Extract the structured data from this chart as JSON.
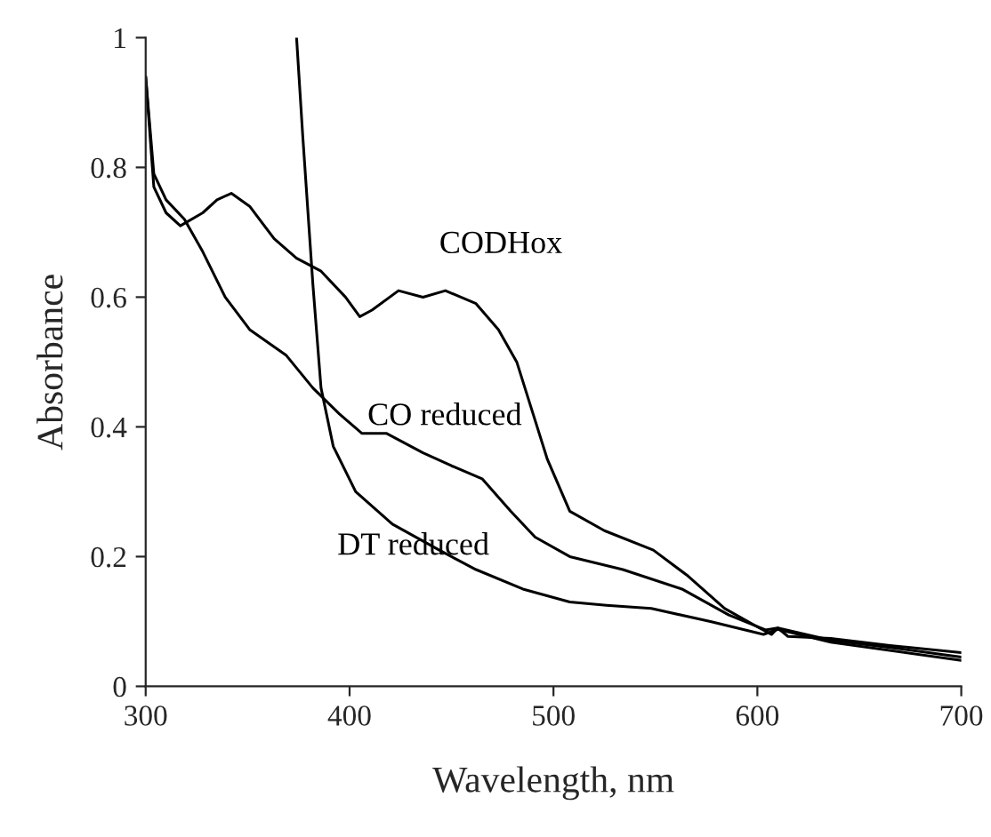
{
  "chart_data": {
    "type": "line",
    "xlabel": "Wavelength, nm",
    "ylabel": "Absorbance",
    "xlim": [
      300,
      700
    ],
    "ylim": [
      0,
      1
    ],
    "xticks": [
      300,
      400,
      500,
      600,
      700
    ],
    "yticks": [
      0,
      0.2,
      0.4,
      0.6,
      0.8,
      1
    ],
    "grid": false,
    "legend": false,
    "marker": "none",
    "line_style": "solid",
    "series": [
      {
        "name": "CODHox",
        "color": "#000000",
        "x": [
          300,
          304,
          310,
          317,
          328,
          335,
          342,
          351,
          363,
          374,
          386,
          398,
          405,
          411,
          424,
          436,
          447,
          462,
          473,
          482,
          491,
          497,
          508,
          525,
          549,
          566,
          584,
          601,
          607,
          610,
          615,
          636,
          665,
          700
        ],
        "values": [
          0.94,
          0.77,
          0.73,
          0.71,
          0.73,
          0.75,
          0.76,
          0.74,
          0.69,
          0.66,
          0.64,
          0.6,
          0.57,
          0.58,
          0.61,
          0.6,
          0.61,
          0.59,
          0.55,
          0.5,
          0.41,
          0.35,
          0.27,
          0.24,
          0.21,
          0.17,
          0.12,
          0.09,
          0.08,
          0.09,
          0.077,
          0.074,
          0.063,
          0.052
        ]
      },
      {
        "name": "CO reduced",
        "color": "#000000",
        "x": [
          300,
          304,
          310,
          319,
          328,
          339,
          351,
          369,
          382,
          395,
          406,
          418,
          436,
          450,
          465,
          479,
          491,
          508,
          534,
          563,
          586,
          604,
          610,
          636,
          665,
          700
        ],
        "values": [
          0.94,
          0.79,
          0.75,
          0.72,
          0.67,
          0.6,
          0.55,
          0.51,
          0.46,
          0.42,
          0.39,
          0.39,
          0.36,
          0.34,
          0.32,
          0.27,
          0.23,
          0.2,
          0.18,
          0.15,
          0.11,
          0.087,
          0.09,
          0.071,
          0.06,
          0.045
        ]
      },
      {
        "name": "DT reduced",
        "color": "#000000",
        "x": [
          374,
          377,
          382,
          386,
          392,
          403,
          421,
          444,
          462,
          485,
          508,
          526,
          548,
          577,
          603,
          610,
          636,
          700
        ],
        "values": [
          1.0,
          0.85,
          0.62,
          0.46,
          0.37,
          0.3,
          0.25,
          0.21,
          0.18,
          0.15,
          0.13,
          0.125,
          0.12,
          0.1,
          0.08,
          0.088,
          0.068,
          0.04
        ]
      }
    ]
  }
}
